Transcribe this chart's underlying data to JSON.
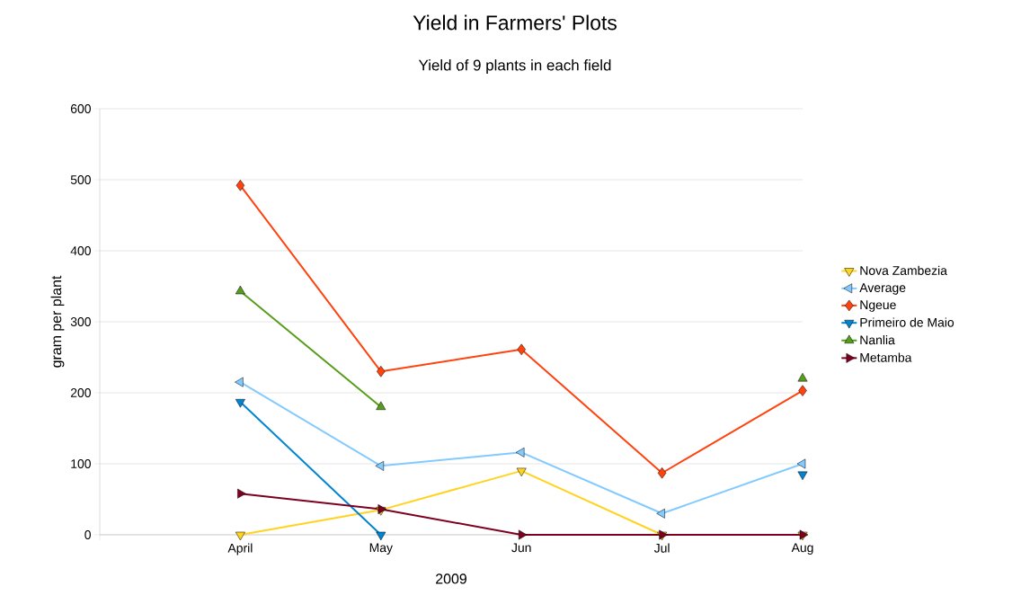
{
  "chart_data": {
    "type": "line",
    "title": "Yield in Farmers' Plots",
    "subtitle": "Yield of 9 plants in each field",
    "xlabel": "2009",
    "ylabel": "gram per plant",
    "categories": [
      null,
      "April",
      "May",
      "Jun",
      "Jul",
      "Aug"
    ],
    "series": [
      {
        "name": "Nova Zambezia",
        "color": "#ffd320",
        "marker": "triangle-down",
        "values": [
          null,
          0,
          35,
          90,
          0,
          0
        ]
      },
      {
        "name": "Average",
        "color": "#83caff",
        "marker": "triangle-left",
        "values": [
          null,
          215,
          97,
          116,
          30,
          100
        ]
      },
      {
        "name": "Ngeue",
        "color": "#ff420e",
        "marker": "diamond",
        "values": [
          null,
          492,
          230,
          261,
          87,
          203
        ]
      },
      {
        "name": "Primeiro de Maio",
        "color": "#0084d1",
        "marker": "triangle-down",
        "values": [
          null,
          187,
          0,
          null,
          null,
          85
        ]
      },
      {
        "name": "Nanlia",
        "color": "#579d1c",
        "marker": "triangle",
        "values": [
          null,
          343,
          180,
          null,
          null,
          220
        ]
      },
      {
        "name": "Metamba",
        "color": "#7e0021",
        "marker": "triangle-right",
        "values": [
          null,
          58,
          36,
          0,
          0,
          0
        ]
      }
    ],
    "ylim": [
      0,
      600
    ],
    "yticks": [
      0,
      100,
      200,
      300,
      400,
      500,
      600
    ],
    "grid": "y",
    "legend": "right"
  }
}
